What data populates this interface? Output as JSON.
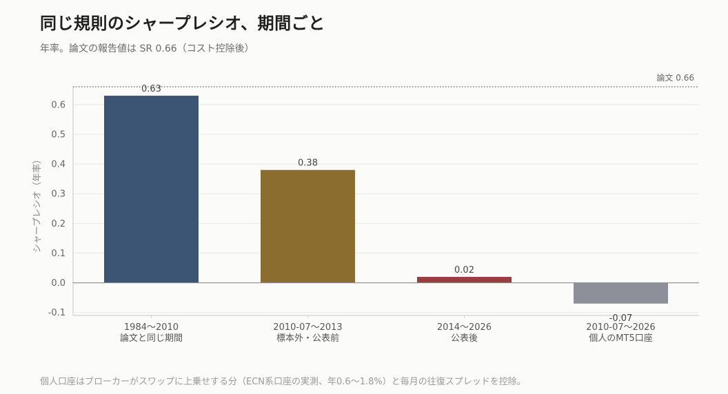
{
  "title": "同じ規則のシャープレシオ、期間ごと",
  "subtitle": "年率。論文の報告値は SR 0.66（コスト控除後）",
  "footnote": "個人口座はブローカーがスワップに上乗せする分（ECN系口座の実測、年0.6〜1.8%）と毎月の往復スプレッドを控除。",
  "chart_data": {
    "type": "bar",
    "title": "同じ規則のシャープレシオ、期間ごと",
    "xlabel": "",
    "ylabel": "シャープレシオ（年率）",
    "ylim": [
      -0.11,
      0.66
    ],
    "yticks": [
      -0.1,
      0.0,
      0.1,
      0.2,
      0.3,
      0.4,
      0.5,
      0.6
    ],
    "tick_labels": [
      "-0.1",
      "0.0",
      "0.1",
      "0.2",
      "0.3",
      "0.4",
      "0.5",
      "0.6"
    ],
    "grid": true,
    "categories": [
      [
        "1984〜2010",
        "論文と同じ期間"
      ],
      [
        "2010-07〜2013",
        "標本外・公表前"
      ],
      [
        "2014〜2026",
        "公表後"
      ],
      [
        "2010-07〜2026",
        "個人のMT5口座"
      ]
    ],
    "values": [
      0.63,
      0.38,
      0.02,
      -0.07
    ],
    "data_labels": [
      "0.63",
      "0.38",
      "0.02",
      "-0.07"
    ],
    "colors": [
      "#3d5574",
      "#8b6d2f",
      "#9b3c41",
      "#8d9099"
    ],
    "reference_line": {
      "value": 0.66,
      "label": "論文 0.66",
      "style": "dotted"
    }
  }
}
